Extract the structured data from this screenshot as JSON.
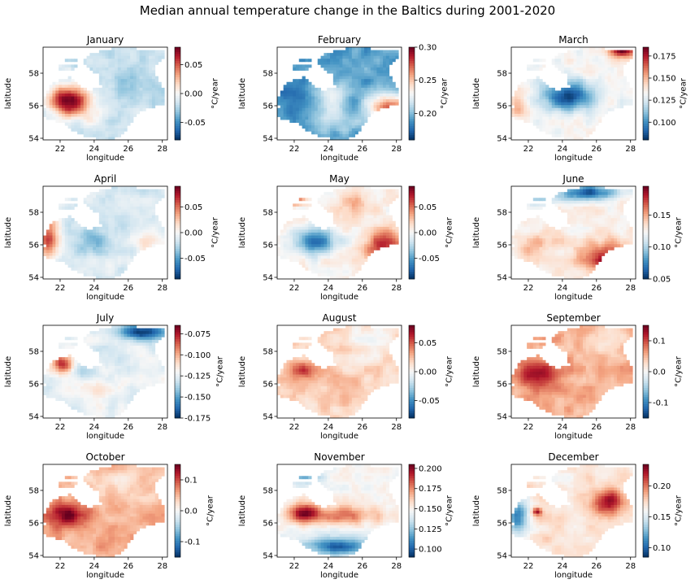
{
  "figure": {
    "title": "Median annual temperature change in the Baltics during 2001-2020",
    "colormap": [
      "#053061",
      "#2166ac",
      "#4393c3",
      "#92c5de",
      "#d1e5f0",
      "#f7f7f7",
      "#fddbc7",
      "#f4a582",
      "#d6604d",
      "#b2182b",
      "#67001f"
    ]
  },
  "chart_data": [
    {
      "type": "heatmap",
      "title": "January",
      "xlabel": "longitude",
      "ylabel": "latitude",
      "xlim": [
        21,
        28.3
      ],
      "ylim": [
        53.9,
        59.6
      ],
      "x_ticks": [
        "22",
        "24",
        "26",
        "28"
      ],
      "y_ticks": [
        "54",
        "56",
        "58"
      ],
      "colorbar_label": "°C/year",
      "colorbar_range": [
        -0.08,
        0.08
      ],
      "colorbar_ticks": [
        "0.05",
        "0.00",
        "-0.05"
      ],
      "pattern": "strong warming in the west (about 22-23°E, 56°N), mild cooling in the east"
    },
    {
      "type": "heatmap",
      "title": "February",
      "xlabel": "longitude",
      "ylabel": "latitude",
      "xlim": [
        21,
        28.3
      ],
      "ylim": [
        53.9,
        59.6
      ],
      "x_ticks": [
        "22",
        "24",
        "26",
        "28"
      ],
      "y_ticks": [
        "54",
        "56",
        "58"
      ],
      "colorbar_label": "°C/year",
      "colorbar_range": [
        0.16,
        0.3
      ],
      "colorbar_ticks": [
        "0.30",
        "0.25",
        "0.20"
      ],
      "pattern": "strongest warming in the south-east, weaker in the west"
    },
    {
      "type": "heatmap",
      "title": "March",
      "xlabel": "longitude",
      "ylabel": "latitude",
      "xlim": [
        21,
        28.3
      ],
      "ylim": [
        53.9,
        59.6
      ],
      "x_ticks": [
        "22",
        "24",
        "26",
        "28"
      ],
      "y_ticks": [
        "54",
        "56",
        "58"
      ],
      "colorbar_label": "°C/year",
      "colorbar_range": [
        0.08,
        0.185
      ],
      "colorbar_ticks": [
        "0.175",
        "0.150",
        "0.125",
        "0.100"
      ],
      "pattern": "weaker warming in the centre, strongest in the north-east"
    },
    {
      "type": "heatmap",
      "title": "April",
      "xlabel": "longitude",
      "ylabel": "latitude",
      "xlim": [
        21,
        28.3
      ],
      "ylim": [
        53.9,
        59.6
      ],
      "x_ticks": [
        "22",
        "24",
        "26",
        "28"
      ],
      "y_ticks": [
        "54",
        "56",
        "58"
      ],
      "colorbar_label": "°C/year",
      "colorbar_range": [
        -0.09,
        0.09
      ],
      "colorbar_ticks": [
        "0.05",
        "0.00",
        "-0.05"
      ],
      "pattern": "warming along the west coast, slight cooling in the centre"
    },
    {
      "type": "heatmap",
      "title": "May",
      "xlabel": "longitude",
      "ylabel": "latitude",
      "xlim": [
        21,
        28.3
      ],
      "ylim": [
        53.9,
        59.6
      ],
      "x_ticks": [
        "22",
        "24",
        "26",
        "28"
      ],
      "y_ticks": [
        "54",
        "56",
        "58"
      ],
      "colorbar_label": "°C/year",
      "colorbar_range": [
        -0.09,
        0.09
      ],
      "colorbar_ticks": [
        "0.05",
        "0.00",
        "-0.05"
      ],
      "pattern": "cooling in the south-west, warming in the east"
    },
    {
      "type": "heatmap",
      "title": "June",
      "xlabel": "longitude",
      "ylabel": "latitude",
      "xlim": [
        21,
        28.3
      ],
      "ylim": [
        53.9,
        59.6
      ],
      "x_ticks": [
        "22",
        "24",
        "26",
        "28"
      ],
      "y_ticks": [
        "54",
        "56",
        "58"
      ],
      "colorbar_label": "°C/year",
      "colorbar_range": [
        0.05,
        0.195
      ],
      "colorbar_ticks": [
        "0.15",
        "0.10",
        "0.05"
      ],
      "pattern": "weakest warming in the north, strongest in the south"
    },
    {
      "type": "heatmap",
      "title": "July",
      "xlabel": "longitude",
      "ylabel": "latitude",
      "xlim": [
        21,
        28.3
      ],
      "ylim": [
        53.9,
        59.6
      ],
      "x_ticks": [
        "22",
        "24",
        "26",
        "28"
      ],
      "y_ticks": [
        "54",
        "56",
        "58"
      ],
      "colorbar_label": "°C/year",
      "colorbar_range": [
        -0.175,
        -0.065
      ],
      "colorbar_ticks": [
        "-0.075",
        "-0.100",
        "-0.125",
        "-0.150",
        "-0.175"
      ],
      "pattern": "strongest cooling in the north-east, weakest around the Gulf of Riga"
    },
    {
      "type": "heatmap",
      "title": "August",
      "xlabel": "longitude",
      "ylabel": "latitude",
      "xlim": [
        21,
        28.3
      ],
      "ylim": [
        53.9,
        59.6
      ],
      "x_ticks": [
        "22",
        "24",
        "26",
        "28"
      ],
      "y_ticks": [
        "54",
        "56",
        "58"
      ],
      "colorbar_label": "°C/year",
      "colorbar_range": [
        -0.08,
        0.08
      ],
      "colorbar_ticks": [
        "0.05",
        "0.00",
        "-0.05"
      ],
      "pattern": "mostly mild warming, stronger in the west"
    },
    {
      "type": "heatmap",
      "title": "September",
      "xlabel": "longitude",
      "ylabel": "latitude",
      "xlim": [
        21,
        28.3
      ],
      "ylim": [
        53.9,
        59.6
      ],
      "x_ticks": [
        "22",
        "24",
        "26",
        "28"
      ],
      "y_ticks": [
        "54",
        "56",
        "58"
      ],
      "colorbar_label": "°C/year",
      "colorbar_range": [
        -0.15,
        0.15
      ],
      "colorbar_ticks": [
        "0.1",
        "0.0",
        "-0.1"
      ],
      "pattern": "warming everywhere, strongest in the west"
    },
    {
      "type": "heatmap",
      "title": "October",
      "xlabel": "longitude",
      "ylabel": "latitude",
      "xlim": [
        21,
        28.3
      ],
      "ylim": [
        53.9,
        59.6
      ],
      "x_ticks": [
        "22",
        "24",
        "26",
        "28"
      ],
      "y_ticks": [
        "54",
        "56",
        "58"
      ],
      "colorbar_label": "°C/year",
      "colorbar_range": [
        -0.15,
        0.15
      ],
      "colorbar_ticks": [
        "0.1",
        "0.0",
        "-0.1"
      ],
      "pattern": "warming everywhere, strongest in the west"
    },
    {
      "type": "heatmap",
      "title": "November",
      "xlabel": "longitude",
      "ylabel": "latitude",
      "xlim": [
        21,
        28.3
      ],
      "ylim": [
        53.9,
        59.6
      ],
      "x_ticks": [
        "22",
        "24",
        "26",
        "28"
      ],
      "y_ticks": [
        "54",
        "56",
        "58"
      ],
      "colorbar_label": "°C/year",
      "colorbar_range": [
        0.09,
        0.205
      ],
      "colorbar_ticks": [
        "0.200",
        "0.175",
        "0.150",
        "0.125",
        "0.100"
      ],
      "pattern": "strongest warming in the centre-west, weaker in the north and south"
    },
    {
      "type": "heatmap",
      "title": "December",
      "xlabel": "longitude",
      "ylabel": "latitude",
      "xlim": [
        21,
        28.3
      ],
      "ylim": [
        53.9,
        59.6
      ],
      "x_ticks": [
        "22",
        "24",
        "26",
        "28"
      ],
      "y_ticks": [
        "54",
        "56",
        "58"
      ],
      "colorbar_label": "°C/year",
      "colorbar_range": [
        0.085,
        0.235
      ],
      "colorbar_ticks": [
        "0.20",
        "0.15",
        "0.10"
      ],
      "pattern": "weaker warming in the west, stronger in the east and at about 22.5°E, 56.7°N"
    }
  ]
}
